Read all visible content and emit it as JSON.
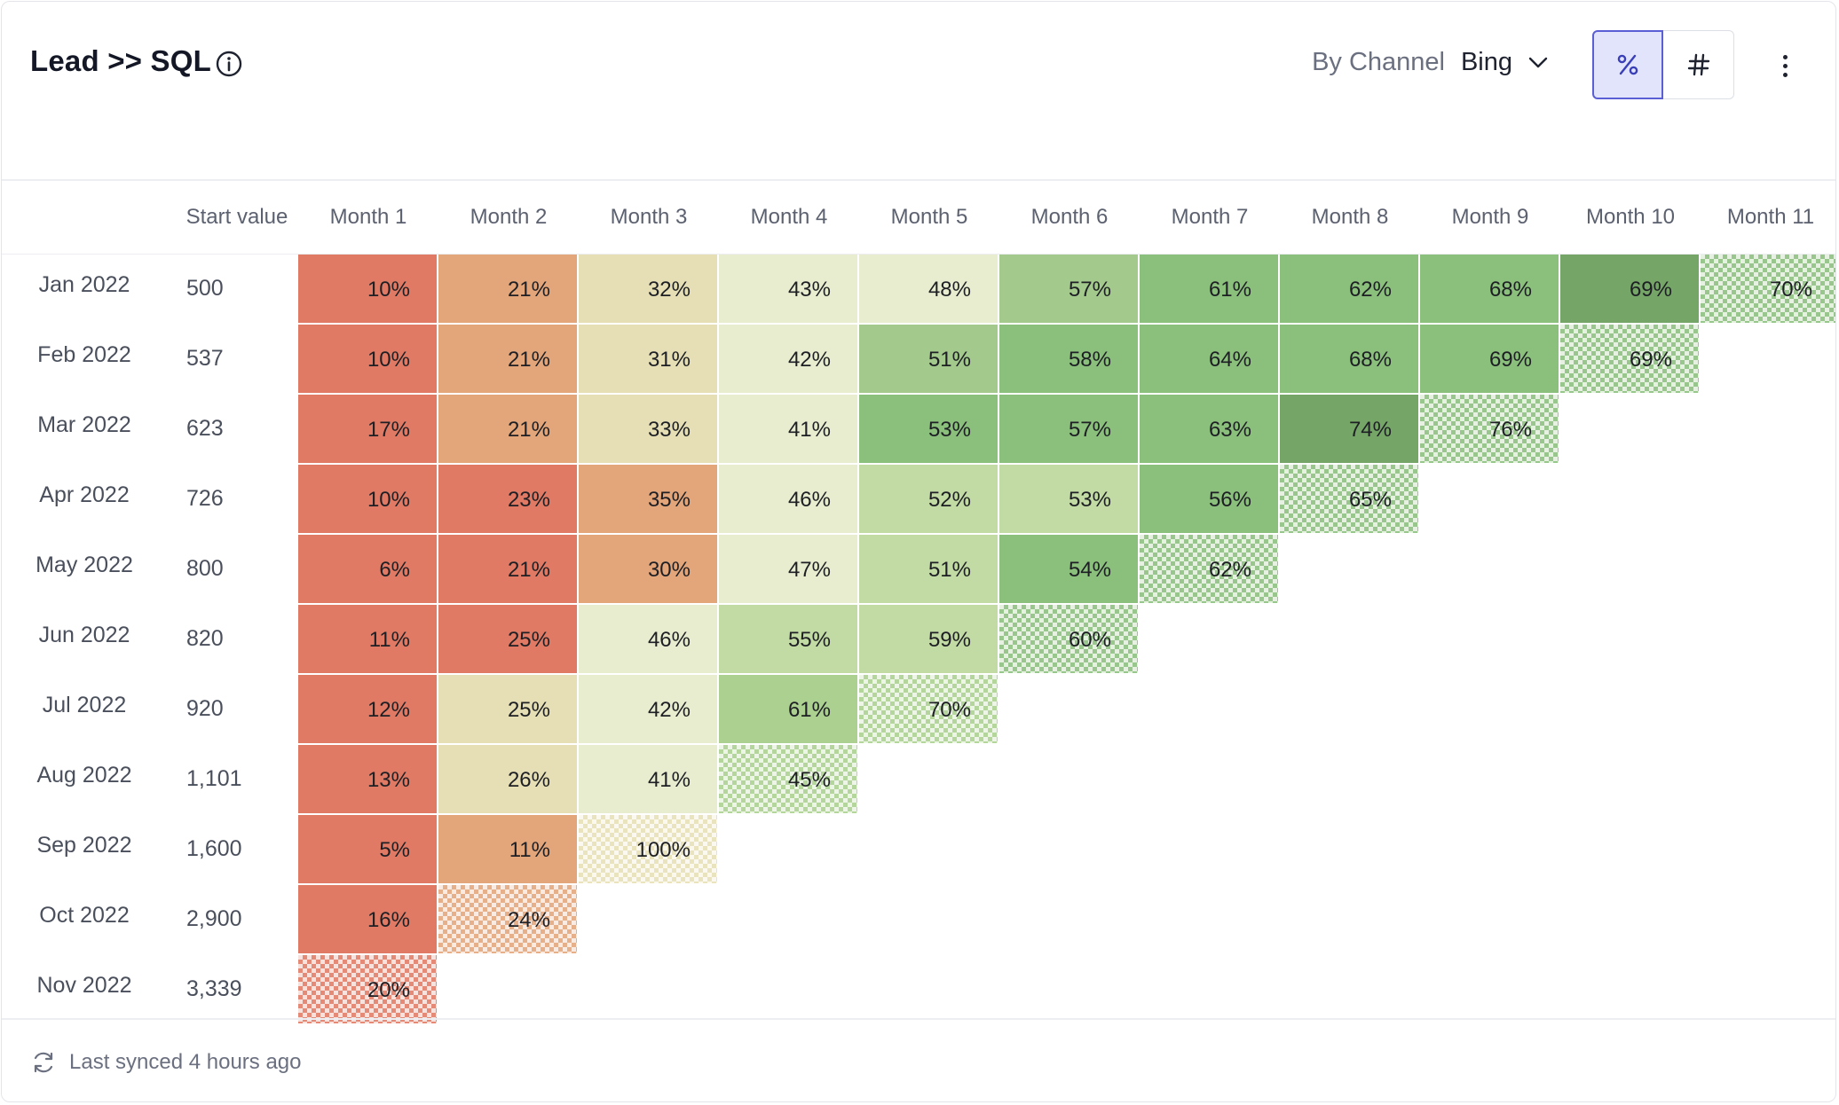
{
  "header": {
    "title": "Lead >> SQL",
    "group_label": "By Channel",
    "group_value": "Bing",
    "percent_label": "%",
    "count_label": "#"
  },
  "footer": {
    "sync_text": "Last synced 4 hours ago"
  },
  "colors": {
    "red": "#e07a65",
    "orange": "#e3a57a",
    "tan": "#e6dfb5",
    "pale": "#e8edcf",
    "lightgreen": "#c2daa3",
    "green1": "#abd08f",
    "green2": "#a3c98c",
    "green3": "#8bbf7c",
    "green4": "#76a568",
    "accent": "#5b5fd6"
  },
  "chart_data": {
    "type": "table",
    "title": "Lead >> SQL",
    "xlabel": "",
    "ylabel": "",
    "columns": [
      "Start value",
      "Month 1",
      "Month 2",
      "Month 3",
      "Month 4",
      "Month 5",
      "Month 6",
      "Month 7",
      "Month 8",
      "Month 9",
      "Month 10",
      "Month 11"
    ],
    "rows": [
      {
        "cohort": "Jan 2022",
        "start": "500",
        "values": [
          "10%",
          "21%",
          "32%",
          "43%",
          "48%",
          "57%",
          "61%",
          "62%",
          "68%",
          "69%",
          "70%"
        ]
      },
      {
        "cohort": "Feb 2022",
        "start": "537",
        "values": [
          "10%",
          "21%",
          "31%",
          "42%",
          "51%",
          "58%",
          "64%",
          "68%",
          "69%",
          "69%"
        ]
      },
      {
        "cohort": "Mar 2022",
        "start": "623",
        "values": [
          "17%",
          "21%",
          "33%",
          "41%",
          "53%",
          "57%",
          "63%",
          "74%",
          "76%"
        ]
      },
      {
        "cohort": "Apr 2022",
        "start": "726",
        "values": [
          "10%",
          "23%",
          "35%",
          "46%",
          "52%",
          "53%",
          "56%",
          "65%"
        ]
      },
      {
        "cohort": "May 2022",
        "start": "800",
        "values": [
          "6%",
          "21%",
          "30%",
          "47%",
          "51%",
          "54%",
          "62%"
        ]
      },
      {
        "cohort": "Jun 2022",
        "start": "820",
        "values": [
          "11%",
          "25%",
          "46%",
          "55%",
          "59%",
          "60%"
        ]
      },
      {
        "cohort": "Jul 2022",
        "start": "920",
        "values": [
          "12%",
          "25%",
          "42%",
          "61%",
          "70%"
        ]
      },
      {
        "cohort": "Aug 2022",
        "start": "1,101",
        "values": [
          "13%",
          "26%",
          "41%",
          "45%"
        ]
      },
      {
        "cohort": "Sep 2022",
        "start": "1,600",
        "values": [
          "5%",
          "11%",
          "100%"
        ]
      },
      {
        "cohort": "Oct 2022",
        "start": "2,900",
        "values": [
          "16%",
          "24%"
        ]
      },
      {
        "cohort": "Nov 2022",
        "start": "3,339",
        "values": [
          "20%"
        ]
      }
    ],
    "cell_colors": [
      [
        "red",
        "orange",
        "tan",
        "pale",
        "pale",
        "green2",
        "green3",
        "green3",
        "green3",
        "green4",
        "green3"
      ],
      [
        "red",
        "orange",
        "tan",
        "pale",
        "green2",
        "green3",
        "green3",
        "green3",
        "green3",
        "green3"
      ],
      [
        "red",
        "orange",
        "tan",
        "pale",
        "green3",
        "green3",
        "green3",
        "green4",
        "green3"
      ],
      [
        "red",
        "red",
        "orange",
        "pale",
        "lightgreen",
        "lightgreen",
        "green3",
        "green3"
      ],
      [
        "red",
        "red",
        "orange",
        "pale",
        "lightgreen",
        "green3",
        "green3"
      ],
      [
        "red",
        "red",
        "pale",
        "lightgreen",
        "lightgreen",
        "green3"
      ],
      [
        "red",
        "tan",
        "pale",
        "green1",
        "green1"
      ],
      [
        "red",
        "tan",
        "pale",
        "green1"
      ],
      [
        "red",
        "orange",
        "tan"
      ],
      [
        "red",
        "orange"
      ],
      [
        "red"
      ]
    ]
  }
}
